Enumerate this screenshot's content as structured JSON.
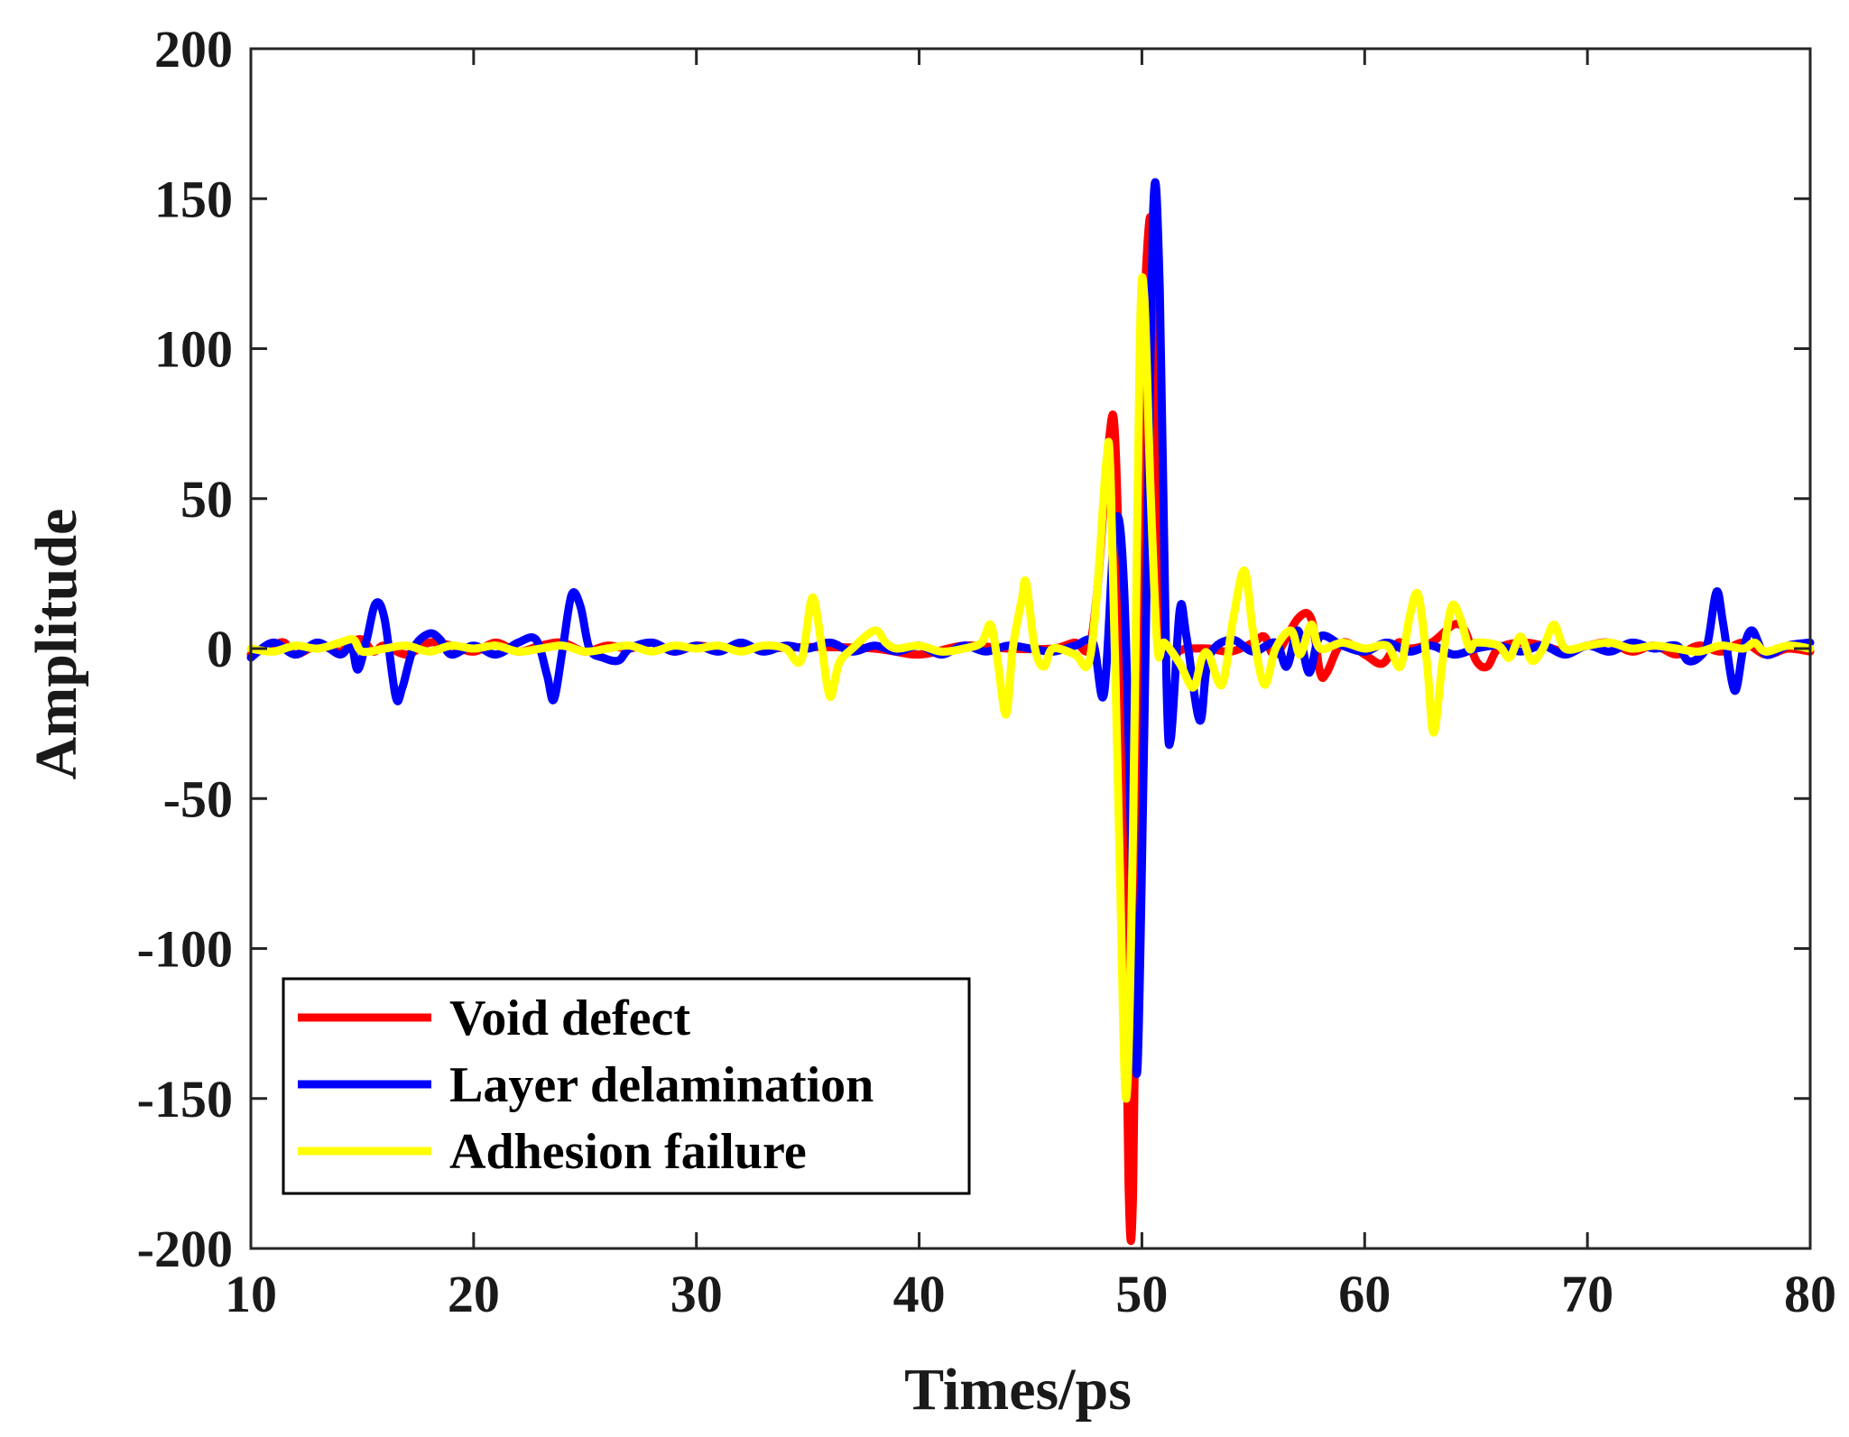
{
  "chart_data": {
    "type": "line",
    "xlabel": "Times/ps",
    "ylabel": "Amplitude",
    "xlim": [
      10,
      80
    ],
    "ylim": [
      -200,
      200
    ],
    "xticks": [
      10,
      20,
      30,
      40,
      50,
      60,
      70,
      80
    ],
    "yticks": [
      -200,
      -150,
      -100,
      -50,
      0,
      50,
      100,
      150,
      200
    ],
    "legend_position": "bottom-left",
    "series": [
      {
        "name": "Void defect",
        "color": "#ff0000",
        "points": [
          [
            10,
            -2
          ],
          [
            11,
            1
          ],
          [
            11.5,
            2
          ],
          [
            12,
            -2
          ],
          [
            13,
            1
          ],
          [
            14,
            -1
          ],
          [
            14.5,
            2
          ],
          [
            15,
            3
          ],
          [
            15.5,
            -1
          ],
          [
            16,
            1
          ],
          [
            17,
            -2
          ],
          [
            18,
            2
          ],
          [
            19,
            1
          ],
          [
            20,
            -1
          ],
          [
            21,
            2
          ],
          [
            22,
            -1
          ],
          [
            23,
            1
          ],
          [
            24,
            2
          ],
          [
            25,
            -1
          ],
          [
            26,
            1
          ],
          [
            27,
            0
          ],
          [
            28,
            2
          ],
          [
            29,
            -1
          ],
          [
            30,
            1
          ],
          [
            31,
            0
          ],
          [
            32,
            1
          ],
          [
            33,
            0
          ],
          [
            35,
            0.5
          ],
          [
            38,
            0
          ],
          [
            40,
            -2
          ],
          [
            42,
            1
          ],
          [
            44,
            0
          ],
          [
            46,
            0
          ],
          [
            47,
            2
          ],
          [
            47.6,
            0
          ],
          [
            48,
            20
          ],
          [
            48.5,
            68
          ],
          [
            48.8,
            70
          ],
          [
            49.1,
            -20
          ],
          [
            49.4,
            -178
          ],
          [
            49.6,
            -182
          ],
          [
            49.8,
            -60
          ],
          [
            50,
            80
          ],
          [
            50.3,
            140
          ],
          [
            50.5,
            125
          ],
          [
            50.8,
            20
          ],
          [
            51.2,
            0
          ],
          [
            52,
            0
          ],
          [
            53,
            0
          ],
          [
            54,
            -1
          ],
          [
            55,
            2
          ],
          [
            55.5,
            4
          ],
          [
            56,
            -2
          ],
          [
            57,
            10
          ],
          [
            57.6,
            10
          ],
          [
            58,
            -8
          ],
          [
            58.3,
            -8
          ],
          [
            59,
            2
          ],
          [
            60,
            -2
          ],
          [
            60.8,
            -5
          ],
          [
            61.5,
            2
          ],
          [
            62,
            0
          ],
          [
            63,
            2
          ],
          [
            64,
            8
          ],
          [
            64.5,
            6
          ],
          [
            65,
            -4
          ],
          [
            65.5,
            -6
          ],
          [
            66,
            0
          ],
          [
            67,
            2
          ],
          [
            68,
            1
          ],
          [
            69,
            -1
          ],
          [
            70,
            1
          ],
          [
            71,
            2
          ],
          [
            72,
            -1
          ],
          [
            73,
            1
          ],
          [
            74,
            -2
          ],
          [
            75,
            1
          ],
          [
            76,
            -1
          ],
          [
            77,
            2
          ],
          [
            78,
            -2
          ],
          [
            79,
            0
          ],
          [
            80,
            -1
          ]
        ]
      },
      {
        "name": "Layer delamination",
        "color": "#0000ff",
        "points": [
          [
            10,
            -3
          ],
          [
            11,
            2
          ],
          [
            12,
            -2
          ],
          [
            13,
            2
          ],
          [
            14,
            -2
          ],
          [
            14.5,
            1
          ],
          [
            14.8,
            -7
          ],
          [
            15.2,
            3
          ],
          [
            15.6,
            15
          ],
          [
            16,
            10
          ],
          [
            16.5,
            -16
          ],
          [
            16.8,
            -13
          ],
          [
            17.3,
            0
          ],
          [
            18,
            5
          ],
          [
            18.5,
            3
          ],
          [
            19,
            -2
          ],
          [
            20,
            1
          ],
          [
            21,
            -2
          ],
          [
            22,
            2
          ],
          [
            22.8,
            3
          ],
          [
            23.3,
            -9
          ],
          [
            23.6,
            -17
          ],
          [
            24,
            0
          ],
          [
            24.4,
            18
          ],
          [
            24.8,
            14
          ],
          [
            25.2,
            0
          ],
          [
            25.8,
            -3
          ],
          [
            26.5,
            -4
          ],
          [
            27,
            0
          ],
          [
            28,
            2
          ],
          [
            29,
            -1
          ],
          [
            30,
            1
          ],
          [
            31,
            -1
          ],
          [
            32,
            2
          ],
          [
            33,
            -1
          ],
          [
            34,
            1
          ],
          [
            35,
            0
          ],
          [
            36,
            2
          ],
          [
            37,
            -1
          ],
          [
            38,
            1
          ],
          [
            39,
            -1
          ],
          [
            40,
            1
          ],
          [
            41,
            -2
          ],
          [
            42,
            1
          ],
          [
            43,
            -1
          ],
          [
            44,
            1
          ],
          [
            45,
            0
          ],
          [
            46,
            -1
          ],
          [
            47,
            1
          ],
          [
            47.8,
            2
          ],
          [
            48.3,
            -15
          ],
          [
            48.8,
            42
          ],
          [
            49.2,
            20
          ],
          [
            49.6,
            -90
          ],
          [
            49.8,
            -140
          ],
          [
            50.1,
            -30
          ],
          [
            50.5,
            145
          ],
          [
            50.8,
            120
          ],
          [
            51.1,
            -10
          ],
          [
            51.3,
            -30
          ],
          [
            51.7,
            13
          ],
          [
            52,
            4
          ],
          [
            52.6,
            -24
          ],
          [
            53,
            -3
          ],
          [
            54,
            3
          ],
          [
            55,
            -1
          ],
          [
            56,
            2
          ],
          [
            56.5,
            -6
          ],
          [
            57,
            6
          ],
          [
            57.5,
            -8
          ],
          [
            58,
            4
          ],
          [
            59,
            1
          ],
          [
            60,
            -1
          ],
          [
            61,
            2
          ],
          [
            62,
            -1
          ],
          [
            63,
            1
          ],
          [
            64,
            -2
          ],
          [
            65,
            0
          ],
          [
            66,
            1
          ],
          [
            67,
            -1
          ],
          [
            68,
            1
          ],
          [
            69,
            -2
          ],
          [
            70,
            1
          ],
          [
            71,
            -1
          ],
          [
            72,
            2
          ],
          [
            73,
            0
          ],
          [
            74,
            1
          ],
          [
            74.5,
            -4
          ],
          [
            75,
            -3
          ],
          [
            75.4,
            2
          ],
          [
            75.8,
            19
          ],
          [
            76.1,
            8
          ],
          [
            76.6,
            -14
          ],
          [
            77,
            0
          ],
          [
            77.4,
            6
          ],
          [
            78,
            -2
          ],
          [
            79,
            1
          ],
          [
            80,
            2
          ]
        ]
      },
      {
        "name": "Adhesion failure",
        "color": "#ffff00",
        "points": [
          [
            10,
            0
          ],
          [
            11,
            -1
          ],
          [
            12,
            1
          ],
          [
            13,
            0
          ],
          [
            14,
            2
          ],
          [
            14.6,
            3
          ],
          [
            15,
            -1
          ],
          [
            16,
            0
          ],
          [
            17,
            1
          ],
          [
            18,
            -1
          ],
          [
            19,
            1
          ],
          [
            20,
            0
          ],
          [
            21,
            1
          ],
          [
            22,
            -1
          ],
          [
            23,
            0
          ],
          [
            24,
            1
          ],
          [
            25,
            -1
          ],
          [
            26,
            0
          ],
          [
            27,
            1
          ],
          [
            28,
            -1
          ],
          [
            29,
            1
          ],
          [
            30,
            0
          ],
          [
            31,
            1
          ],
          [
            32,
            -1
          ],
          [
            33,
            1
          ],
          [
            34,
            0
          ],
          [
            34.7,
            -4
          ],
          [
            35.2,
            17
          ],
          [
            35.6,
            2
          ],
          [
            36,
            -16
          ],
          [
            36.4,
            -5
          ],
          [
            37,
            0
          ],
          [
            38,
            6
          ],
          [
            38.5,
            2
          ],
          [
            39,
            0
          ],
          [
            40,
            1
          ],
          [
            41,
            -1
          ],
          [
            42,
            0
          ],
          [
            42.8,
            2
          ],
          [
            43.2,
            8
          ],
          [
            43.5,
            -3
          ],
          [
            43.9,
            -22
          ],
          [
            44.2,
            0
          ],
          [
            44.6,
            16
          ],
          [
            44.8,
            22
          ],
          [
            45.2,
            0
          ],
          [
            45.6,
            -6
          ],
          [
            46,
            0
          ],
          [
            47,
            -2
          ],
          [
            47.6,
            -5
          ],
          [
            48,
            20
          ],
          [
            48.4,
            62
          ],
          [
            48.6,
            55
          ],
          [
            49,
            -70
          ],
          [
            49.3,
            -150
          ],
          [
            49.6,
            -60
          ],
          [
            49.9,
            100
          ],
          [
            50.1,
            118
          ],
          [
            50.4,
            50
          ],
          [
            50.7,
            0
          ],
          [
            51,
            2
          ],
          [
            51.7,
            -5
          ],
          [
            52.3,
            -13
          ],
          [
            52.7,
            -3
          ],
          [
            53,
            -2
          ],
          [
            53.6,
            -12
          ],
          [
            54.1,
            10
          ],
          [
            54.6,
            26
          ],
          [
            55,
            5
          ],
          [
            55.5,
            -12
          ],
          [
            56,
            0
          ],
          [
            56.7,
            6
          ],
          [
            57.1,
            -2
          ],
          [
            57.6,
            8
          ],
          [
            58,
            0
          ],
          [
            59,
            2
          ],
          [
            60,
            0
          ],
          [
            61,
            1
          ],
          [
            61.6,
            -6
          ],
          [
            62,
            10
          ],
          [
            62.4,
            18
          ],
          [
            62.8,
            -5
          ],
          [
            63.1,
            -28
          ],
          [
            63.5,
            -4
          ],
          [
            63.9,
            14
          ],
          [
            64.3,
            10
          ],
          [
            64.7,
            0
          ],
          [
            65,
            2
          ],
          [
            66,
            1
          ],
          [
            66.5,
            -3
          ],
          [
            67,
            4
          ],
          [
            67.5,
            -4
          ],
          [
            68,
            0
          ],
          [
            68.5,
            8
          ],
          [
            69,
            0
          ],
          [
            70,
            1
          ],
          [
            71,
            2
          ],
          [
            72,
            0
          ],
          [
            73,
            1
          ],
          [
            74,
            0
          ],
          [
            75,
            -1
          ],
          [
            76,
            1
          ],
          [
            77,
            0
          ],
          [
            77.5,
            2
          ],
          [
            78,
            -1
          ],
          [
            79,
            1
          ],
          [
            80,
            0
          ]
        ]
      }
    ]
  }
}
